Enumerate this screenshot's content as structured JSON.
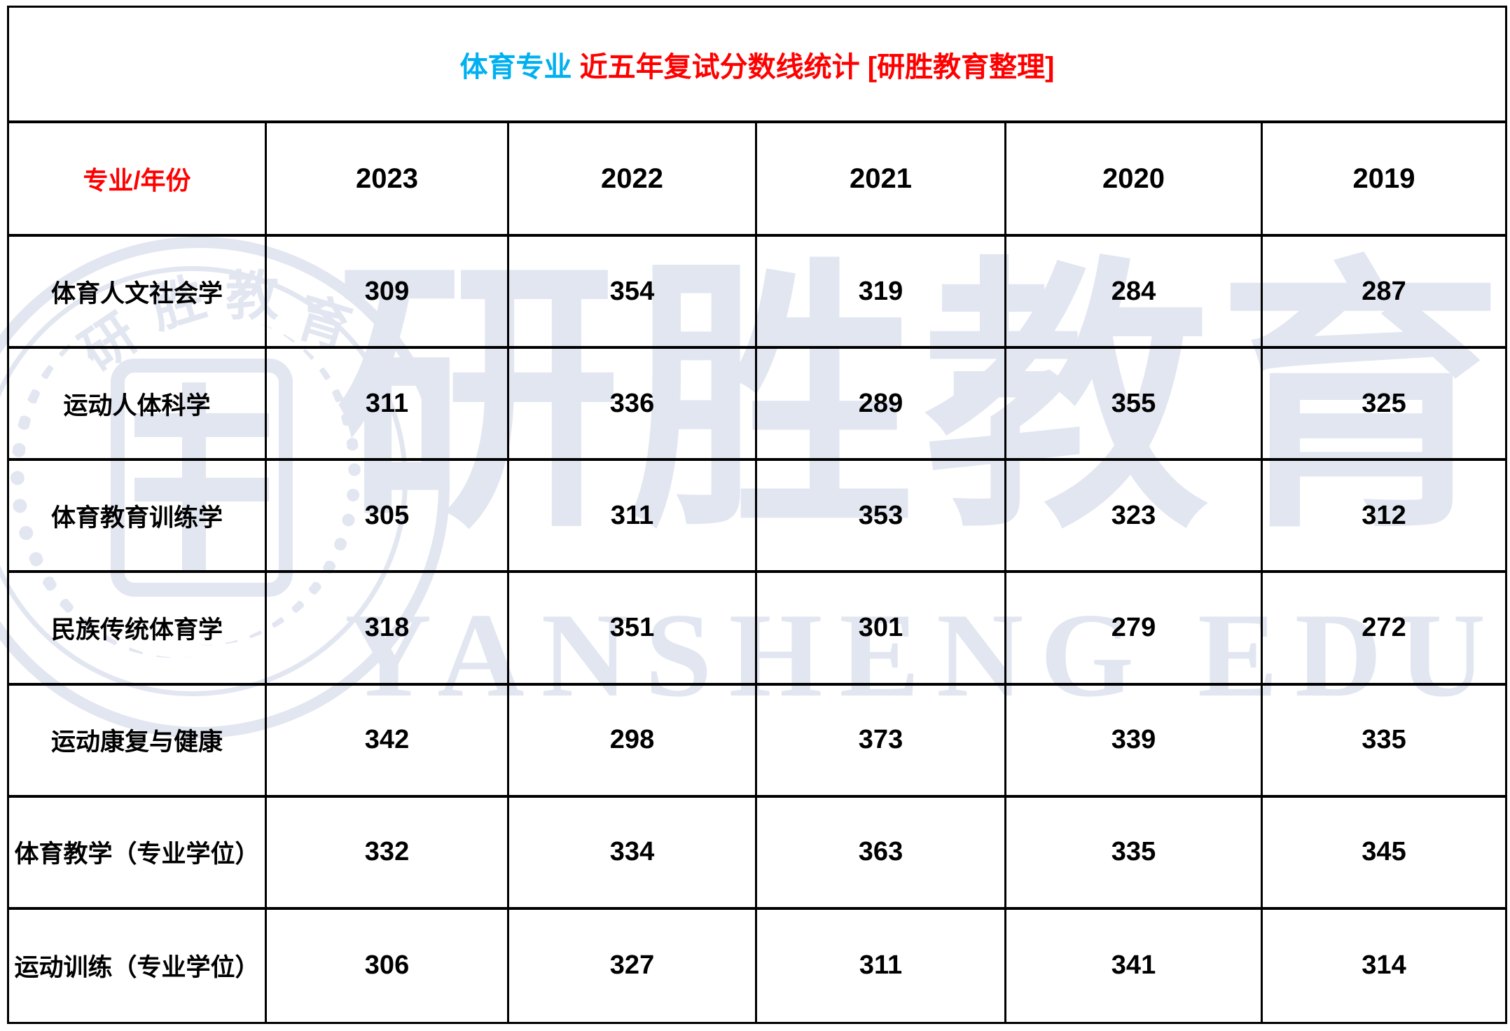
{
  "title": {
    "highlight": "体育专业",
    "rest": "近五年复试分数线统计 [研胜教育整理]",
    "highlight_color": "#00B0F0",
    "rest_color": "#FF0000"
  },
  "table": {
    "corner_label": "专业/年份",
    "year_columns": [
      "2023",
      "2022",
      "2021",
      "2020",
      "2019"
    ],
    "rows": [
      {
        "label": "体育人文社会学",
        "values": [
          "309",
          "354",
          "319",
          "284",
          "287"
        ]
      },
      {
        "label": "运动人体科学",
        "values": [
          "311",
          "336",
          "289",
          "355",
          "325"
        ]
      },
      {
        "label": "体育教育训练学",
        "values": [
          "305",
          "311",
          "353",
          "323",
          "312"
        ]
      },
      {
        "label": "民族传统体育学",
        "values": [
          "318",
          "351",
          "301",
          "279",
          "272"
        ]
      },
      {
        "label": "运动康复与健康",
        "values": [
          "342",
          "298",
          "373",
          "339",
          "335"
        ]
      },
      {
        "label": "体育教学（专业学位）",
        "values": [
          "332",
          "334",
          "363",
          "335",
          "345"
        ]
      },
      {
        "label": "运动训练（专业学位）",
        "values": [
          "306",
          "327",
          "311",
          "341",
          "314"
        ]
      }
    ]
  },
  "watermark": {
    "cjk_text": "研胜教育",
    "latin_text": "YANSHENG EDU",
    "arc_top_chars": [
      "研",
      "胜",
      "教",
      "育"
    ],
    "color": "#E2E6F1"
  },
  "chart_data": {
    "type": "table",
    "title": "体育专业 近五年复试分数线统计 [研胜教育整理]",
    "categories": [
      "2023",
      "2022",
      "2021",
      "2020",
      "2019"
    ],
    "series": [
      {
        "name": "体育人文社会学",
        "values": [
          309,
          354,
          319,
          284,
          287
        ]
      },
      {
        "name": "运动人体科学",
        "values": [
          311,
          336,
          289,
          355,
          325
        ]
      },
      {
        "name": "体育教育训练学",
        "values": [
          305,
          311,
          353,
          323,
          312
        ]
      },
      {
        "name": "民族传统体育学",
        "values": [
          318,
          351,
          301,
          279,
          272
        ]
      },
      {
        "name": "运动康复与健康",
        "values": [
          342,
          298,
          373,
          339,
          335
        ]
      },
      {
        "name": "体育教学（专业学位）",
        "values": [
          332,
          334,
          363,
          335,
          345
        ]
      },
      {
        "name": "运动训练（专业学位）",
        "values": [
          306,
          327,
          311,
          341,
          314
        ]
      }
    ]
  }
}
